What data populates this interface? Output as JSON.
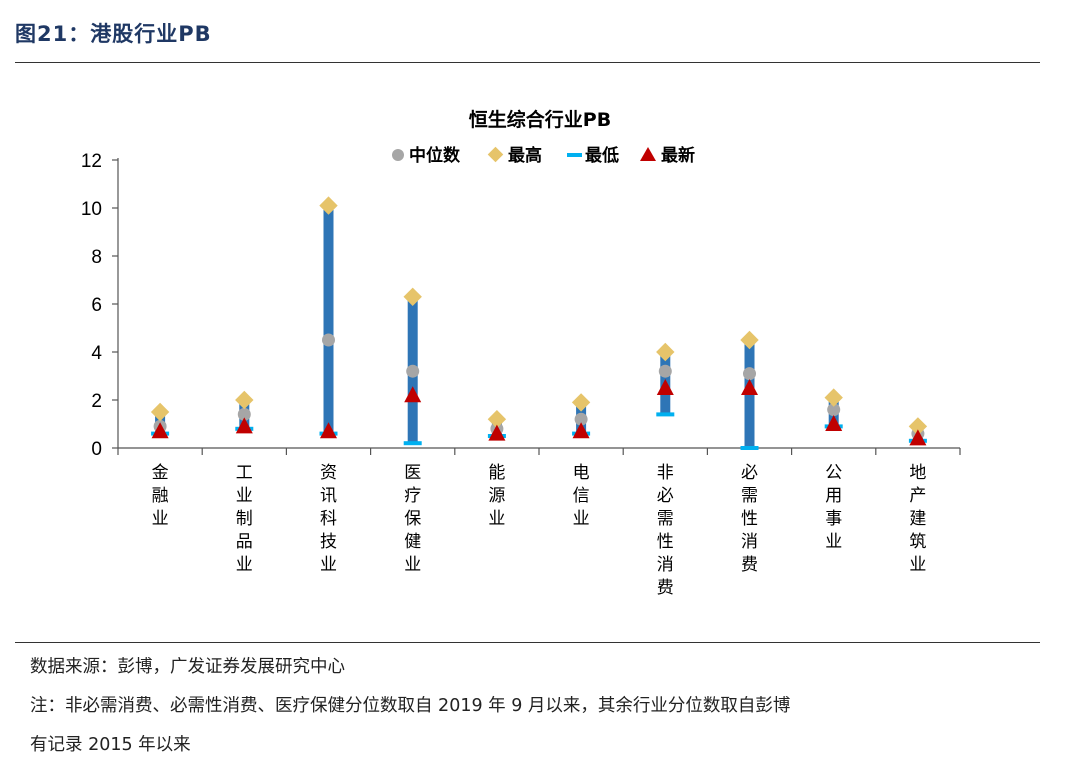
{
  "figure_title": "图21：港股行业PB",
  "source": "数据来源：彭博，广发证券发展研究中心",
  "note_line1": "注：非必需消费、必需性消费、医疗保健分位数取自 2019 年 9 月以来，其余行业分位数取自彭博",
  "note_line2": "有记录 2015 年以来",
  "colors": {
    "bar": "#2e75b6",
    "median": "#a6a6a6",
    "high": "#e6c46a",
    "low": "#00b0f0",
    "latest": "#c00000",
    "title_blue": "#1f3864"
  },
  "chart_data": {
    "type": "range",
    "title": "恒生综合行业PB",
    "legend_position": "top",
    "legend": [
      "中位数",
      "最高",
      "最低",
      "最新"
    ],
    "ylim": [
      0,
      12
    ],
    "yticks": [
      0,
      2,
      4,
      6,
      8,
      10,
      12
    ],
    "categories": [
      "金融业",
      "工业制品业",
      "资讯科技业",
      "医疗保健业",
      "能源业",
      "电信业",
      "非必需性消费",
      "必需性消费",
      "公用事业",
      "地产建筑业"
    ],
    "series": [
      {
        "name": "中位数",
        "values": [
          0.9,
          1.4,
          4.5,
          3.2,
          0.8,
          1.2,
          3.2,
          3.1,
          1.6,
          0.6
        ]
      },
      {
        "name": "最高",
        "values": [
          1.5,
          2.0,
          10.1,
          6.3,
          1.2,
          1.9,
          4.0,
          4.5,
          2.1,
          0.9
        ]
      },
      {
        "name": "最低",
        "values": [
          0.6,
          0.8,
          0.6,
          0.2,
          0.5,
          0.6,
          1.4,
          0.0,
          0.9,
          0.3
        ]
      },
      {
        "name": "最新",
        "values": [
          0.7,
          0.9,
          0.7,
          2.2,
          0.6,
          0.7,
          2.5,
          2.5,
          1.0,
          0.4
        ]
      }
    ]
  }
}
